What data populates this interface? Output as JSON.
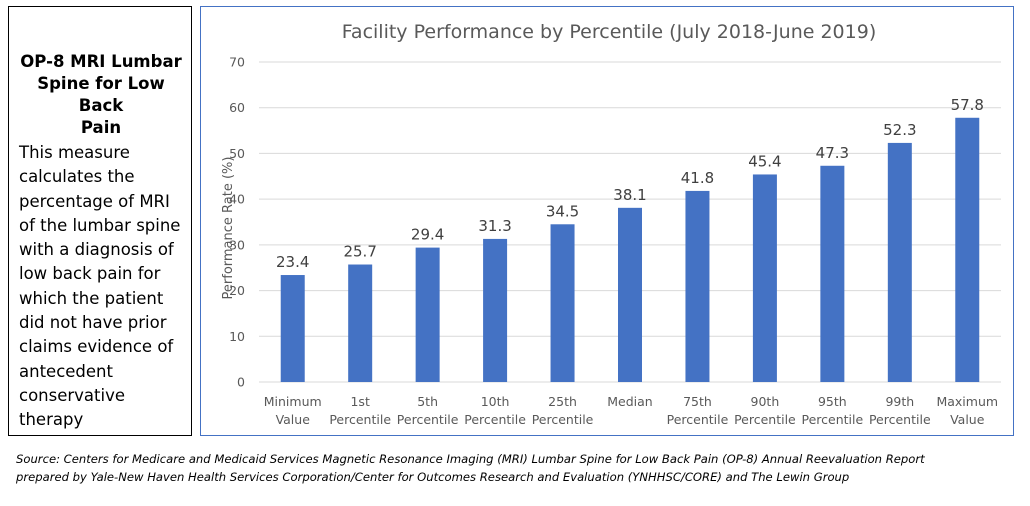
{
  "sidebar": {
    "title_lines": [
      "OP-8 MRI Lumbar",
      "Spine for Low Back",
      "Pain"
    ],
    "description_lines": [
      "This measure",
      "calculates the",
      "percentage of MRI",
      "of the lumbar spine",
      "with a diagnosis of",
      "low back pain for",
      "which the patient",
      "did not have prior",
      "claims evidence of",
      "antecedent",
      "conservative",
      "therapy"
    ]
  },
  "source": {
    "lines": [
      "Source: Centers for Medicare and Medicaid Services Magnetic Resonance Imaging (MRI) Lumbar Spine for Low Back Pain (OP-8) Annual Reevaluation Report",
      "prepared by Yale-New Haven Health Services Corporation/Center for Outcomes Research and Evaluation (YNHHSC/CORE) and The Lewin Group"
    ]
  },
  "chart_data": {
    "type": "bar",
    "title": "Facility Performance by Percentile (July 2018-June 2019)",
    "xlabel": "",
    "ylabel": "Performance Rate (%)",
    "ylim": [
      0,
      70
    ],
    "yticks": [
      0,
      10,
      20,
      30,
      40,
      50,
      60,
      70
    ],
    "grid": true,
    "legend": "none",
    "bar_color": "#4472c4",
    "categories": [
      [
        "Minimum",
        "Value"
      ],
      [
        "1st",
        "Percentile"
      ],
      [
        "5th",
        "Percentile"
      ],
      [
        "10th",
        "Percentile"
      ],
      [
        "25th",
        "Percentile"
      ],
      [
        "Median"
      ],
      [
        "75th",
        "Percentile"
      ],
      [
        "90th",
        "Percentile"
      ],
      [
        "95th",
        "Percentile"
      ],
      [
        "99th",
        "Percentile"
      ],
      [
        "Maximum",
        "Value"
      ]
    ],
    "values": [
      23.4,
      25.7,
      29.4,
      31.3,
      34.5,
      38.1,
      41.8,
      45.4,
      47.3,
      52.3,
      57.8
    ],
    "data_labels": [
      "23.4",
      "25.7",
      "29.4",
      "31.3",
      "34.5",
      "38.1",
      "41.8",
      "45.4",
      "47.3",
      "52.3",
      "57.8"
    ]
  }
}
